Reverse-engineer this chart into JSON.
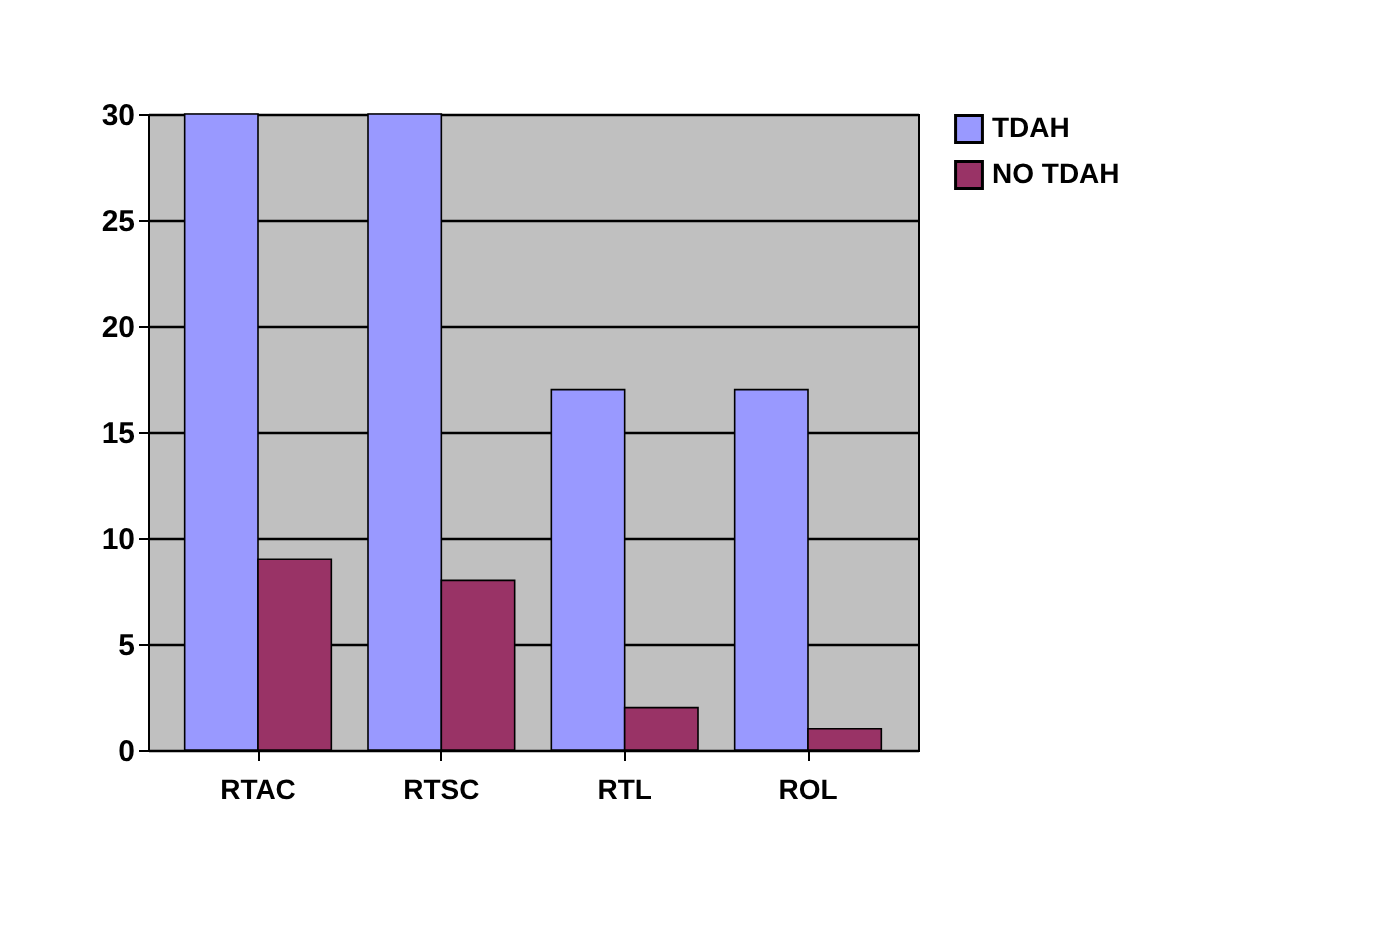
{
  "chart_data": {
    "type": "bar",
    "categories": [
      "RTAC",
      "RTSC",
      "RTL",
      "ROL"
    ],
    "series": [
      {
        "name": "TDAH",
        "color": "#9999ff",
        "values": [
          30,
          30,
          17,
          17
        ]
      },
      {
        "name": "NO TDAH",
        "color": "#993366",
        "values": [
          9,
          8,
          2,
          1
        ]
      }
    ],
    "ylim": [
      0,
      30
    ],
    "yticks": [
      0,
      5,
      10,
      15,
      20,
      25,
      30
    ],
    "grid": "y",
    "legend": "right"
  }
}
